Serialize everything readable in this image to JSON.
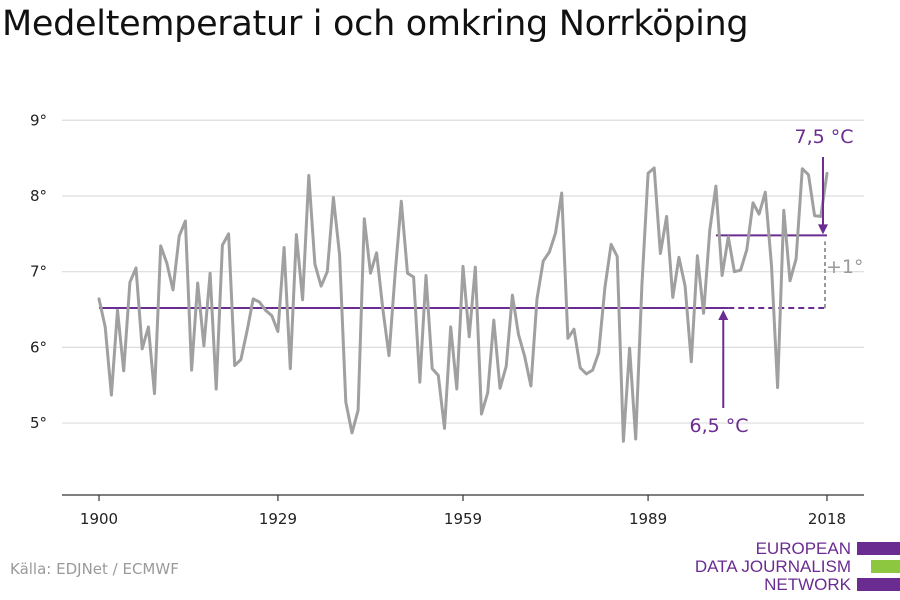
{
  "title": "Medeltemperatur i och omkring Norrköping",
  "source": "Källa: EDJNet / ECMWF",
  "logo": {
    "lines": [
      "EUROPEAN",
      "DATA JOURNALISM",
      "NETWORK"
    ],
    "colors": [
      "#6b2c91",
      "#8dc63f",
      "#6b2c91"
    ]
  },
  "colors": {
    "series": "#a0a0a0",
    "baseline": "#6b2c91",
    "recent": "#6b2c91",
    "diff": "#9a9a9a",
    "grid": "#dddddd",
    "axis": "#333333"
  },
  "chart_data": {
    "type": "line",
    "title": "Medeltemperatur i och omkring Norrköping",
    "xlabel": "",
    "ylabel": "",
    "x_ticks": [
      1900,
      1929,
      1959,
      1989,
      2018
    ],
    "x_tick_labels": [
      "1900",
      "1929",
      "1959",
      "1989",
      "2018"
    ],
    "y_ticks": [
      5,
      6,
      7,
      8,
      9
    ],
    "y_tick_labels": [
      "5°",
      "6°",
      "7°",
      "8°",
      "9°"
    ],
    "xlim": [
      1894,
      2024
    ],
    "ylim": [
      4.05,
      9.4
    ],
    "grid": true,
    "series": [
      {
        "x": [
          1900,
          1901,
          1902,
          1903,
          1904,
          1905,
          1906,
          1907,
          1908,
          1909,
          1910,
          1911,
          1912,
          1913,
          1914,
          1915,
          1916,
          1917,
          1918,
          1919,
          1920,
          1921,
          1922,
          1923,
          1924,
          1925,
          1926,
          1927,
          1928,
          1929,
          1930,
          1931,
          1932,
          1933,
          1934,
          1935,
          1936,
          1937,
          1938,
          1939,
          1940,
          1941,
          1942,
          1943,
          1944,
          1945,
          1946,
          1947,
          1948,
          1949,
          1950,
          1951,
          1952,
          1953,
          1954,
          1955,
          1956,
          1957,
          1958,
          1959,
          1960,
          1961,
          1962,
          1963,
          1964,
          1965,
          1966,
          1967,
          1968,
          1969,
          1970,
          1971,
          1972,
          1973,
          1974,
          1975,
          1976,
          1977,
          1978,
          1979,
          1980,
          1981,
          1982,
          1983,
          1984,
          1985,
          1986,
          1987,
          1988,
          1989,
          1990,
          1991,
          1992,
          1993,
          1994,
          1995,
          1996,
          1997,
          1998,
          1999,
          2000,
          2001,
          2002,
          2003,
          2004,
          2005,
          2006,
          2007,
          2008,
          2009,
          2010,
          2011,
          2012,
          2013,
          2014,
          2015,
          2016,
          2017,
          2018
        ],
        "values": [
          6.64,
          6.27,
          5.37,
          6.49,
          5.69,
          6.86,
          7.05,
          5.98,
          6.27,
          5.39,
          7.34,
          7.11,
          6.76,
          7.47,
          7.67,
          5.7,
          6.85,
          6.02,
          6.98,
          5.45,
          7.35,
          7.5,
          5.76,
          5.84,
          6.22,
          6.64,
          6.6,
          6.49,
          6.42,
          6.21,
          7.32,
          5.72,
          7.49,
          6.63,
          8.27,
          7.1,
          6.81,
          7.0,
          7.98,
          7.22,
          5.28,
          4.87,
          5.17,
          7.7,
          6.98,
          7.25,
          6.51,
          5.89,
          6.97,
          7.93,
          6.98,
          6.93,
          5.54,
          6.95,
          5.72,
          5.63,
          4.93,
          6.27,
          5.45,
          7.07,
          6.14,
          7.06,
          5.12,
          5.4,
          6.36,
          5.46,
          5.75,
          6.69,
          6.17,
          5.88,
          5.49,
          6.64,
          7.14,
          7.26,
          7.51,
          8.04,
          6.12,
          6.24,
          5.73,
          5.65,
          5.7,
          5.93,
          6.79,
          7.36,
          7.2,
          4.76,
          5.99,
          4.79,
          6.82,
          8.3,
          8.37,
          7.24,
          7.73,
          6.66,
          7.19,
          6.81,
          5.81,
          7.21,
          6.45,
          7.55,
          8.13,
          6.95,
          7.46,
          7.0,
          7.02,
          7.29,
          7.91,
          7.76,
          8.05,
          7.08,
          5.47,
          7.81,
          6.88,
          7.17,
          8.36,
          8.28,
          7.74,
          7.73,
          8.3
        ]
      }
    ],
    "reference_lines": [
      {
        "label": "6,5 °C",
        "value": 6.52,
        "x_solid": [
          1900,
          2002
        ],
        "x_dashed": [
          2002,
          2018
        ]
      },
      {
        "label": "7,5 °C",
        "value": 7.48,
        "x_solid": [
          2000,
          2018
        ]
      }
    ],
    "annotations": [
      "7,5 °C",
      "6,5 °C",
      "+1°"
    ]
  }
}
